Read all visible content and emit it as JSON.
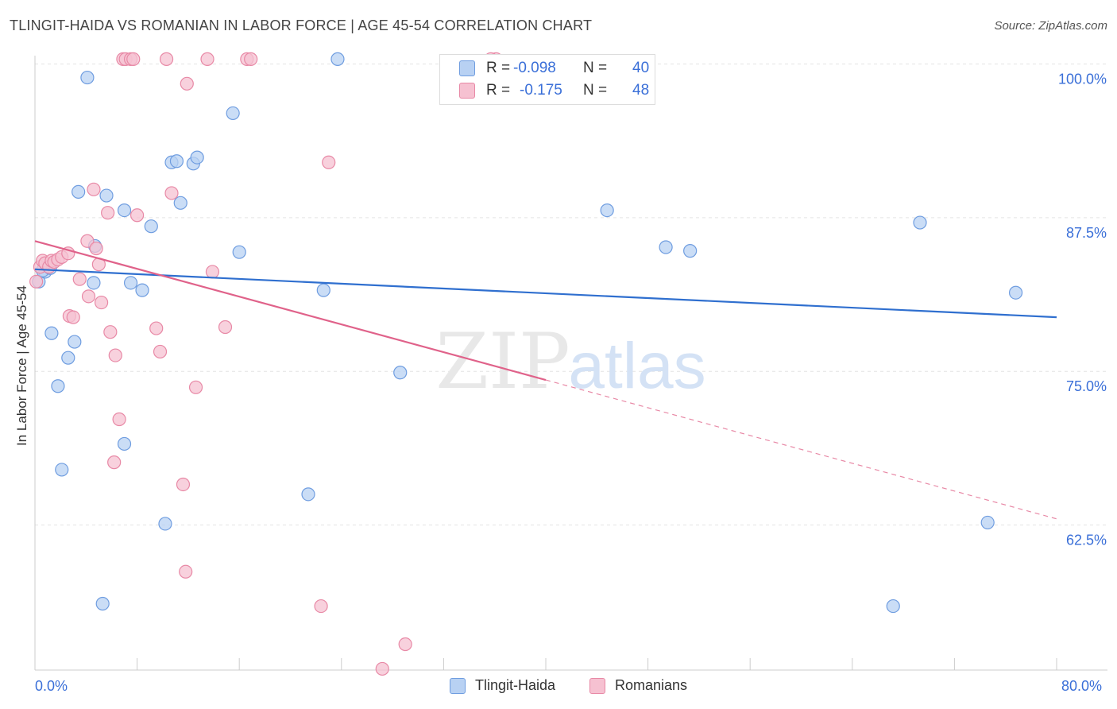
{
  "chart_data": {
    "type": "scatter",
    "title": "TLINGIT-HAIDA VS ROMANIAN IN LABOR FORCE | AGE 45-54 CORRELATION CHART",
    "source": "Source: ZipAtlas.com",
    "xlabel": "",
    "ylabel": "In Labor Force | Age 45-54",
    "xlim": [
      0,
      80
    ],
    "ylim": [
      50.7,
      101.2
    ],
    "x_tick_labels": [
      "0.0%",
      "80.0%"
    ],
    "y_ticks": [
      {
        "value": 100.0,
        "label": "100.0%"
      },
      {
        "value": 87.5,
        "label": "87.5%"
      },
      {
        "value": 75.0,
        "label": "75.0%"
      },
      {
        "value": 62.5,
        "label": "62.5%"
      }
    ],
    "watermark": {
      "zip": "ZIP",
      "atlas": "atlas"
    },
    "legend": {
      "r_label": "R =",
      "n_label": "N =",
      "entries": [
        {
          "name": "Tlingit-Haida",
          "r": "-0.098",
          "n": "40",
          "color": "#6f9de0",
          "fill": "#b8d1f3"
        },
        {
          "name": "Romanians",
          "r": "-0.175",
          "n": "48",
          "color": "#e889a6",
          "fill": "#f6c1d1"
        }
      ]
    },
    "series": [
      {
        "name": "Tlingit-Haida",
        "color": "#6f9de0",
        "fill": "#b8d1f3",
        "points": [
          [
            0.3,
            82.3
          ],
          [
            0.8,
            83.1
          ],
          [
            1.3,
            78.1
          ],
          [
            1.8,
            73.8
          ],
          [
            2.1,
            67.0
          ],
          [
            2.6,
            76.1
          ],
          [
            3.1,
            77.4
          ],
          [
            3.4,
            89.6
          ],
          [
            4.1,
            98.9
          ],
          [
            4.6,
            82.2
          ],
          [
            4.7,
            85.2
          ],
          [
            5.3,
            56.1
          ],
          [
            5.6,
            89.3
          ],
          [
            7.0,
            88.1
          ],
          [
            7.0,
            69.1
          ],
          [
            7.5,
            82.2
          ],
          [
            8.4,
            81.6
          ],
          [
            9.1,
            86.8
          ],
          [
            10.2,
            62.6
          ],
          [
            10.7,
            92.0
          ],
          [
            11.1,
            92.1
          ],
          [
            11.4,
            88.7
          ],
          [
            12.4,
            91.9
          ],
          [
            12.7,
            92.4
          ],
          [
            15.5,
            96.0
          ],
          [
            16.0,
            84.7
          ],
          [
            22.6,
            81.6
          ],
          [
            21.4,
            65.0
          ],
          [
            23.7,
            100.4
          ],
          [
            28.6,
            74.9
          ],
          [
            36.2,
            100.2
          ],
          [
            44.8,
            88.1
          ],
          [
            49.4,
            85.1
          ],
          [
            51.3,
            84.8
          ],
          [
            67.2,
            55.9
          ],
          [
            69.3,
            87.1
          ],
          [
            74.6,
            62.7
          ],
          [
            76.8,
            81.4
          ],
          [
            0.6,
            83.2
          ],
          [
            1.2,
            83.4
          ]
        ],
        "trend": {
          "x0": 0,
          "y0": 83.3,
          "x1": 80,
          "y1": 79.4
        }
      },
      {
        "name": "Romanians",
        "color": "#e889a6",
        "fill": "#f6c1d1",
        "points": [
          [
            0.1,
            82.3
          ],
          [
            0.4,
            83.5
          ],
          [
            0.6,
            84.0
          ],
          [
            0.8,
            83.8
          ],
          [
            1.1,
            83.5
          ],
          [
            1.3,
            84.0
          ],
          [
            1.5,
            83.9
          ],
          [
            1.8,
            84.1
          ],
          [
            2.1,
            84.3
          ],
          [
            2.6,
            84.6
          ],
          [
            2.7,
            79.5
          ],
          [
            3.0,
            79.4
          ],
          [
            3.5,
            82.5
          ],
          [
            4.1,
            85.6
          ],
          [
            4.2,
            81.1
          ],
          [
            4.6,
            89.8
          ],
          [
            4.8,
            85.0
          ],
          [
            5.0,
            83.7
          ],
          [
            5.2,
            80.6
          ],
          [
            5.7,
            87.9
          ],
          [
            5.9,
            78.2
          ],
          [
            6.2,
            67.6
          ],
          [
            6.3,
            76.3
          ],
          [
            6.6,
            71.1
          ],
          [
            6.9,
            100.4
          ],
          [
            7.1,
            100.4
          ],
          [
            7.5,
            100.4
          ],
          [
            7.7,
            100.4
          ],
          [
            8.0,
            87.7
          ],
          [
            9.5,
            78.5
          ],
          [
            9.8,
            76.6
          ],
          [
            10.3,
            100.4
          ],
          [
            10.7,
            89.5
          ],
          [
            11.6,
            65.8
          ],
          [
            11.8,
            58.7
          ],
          [
            11.9,
            98.4
          ],
          [
            12.6,
            73.7
          ],
          [
            13.5,
            100.4
          ],
          [
            13.9,
            83.1
          ],
          [
            14.9,
            78.6
          ],
          [
            16.6,
            100.4
          ],
          [
            16.9,
            100.4
          ],
          [
            22.4,
            55.9
          ],
          [
            23.0,
            92.0
          ],
          [
            27.2,
            50.8
          ],
          [
            29.0,
            52.8
          ],
          [
            36.1,
            100.4
          ],
          [
            35.7,
            100.4
          ]
        ],
        "trend": {
          "x0": 0,
          "y0": 85.6,
          "x1": 40,
          "y1": 74.3,
          "x_dash_end": 80,
          "y_dash_end": 63.0
        }
      }
    ]
  }
}
